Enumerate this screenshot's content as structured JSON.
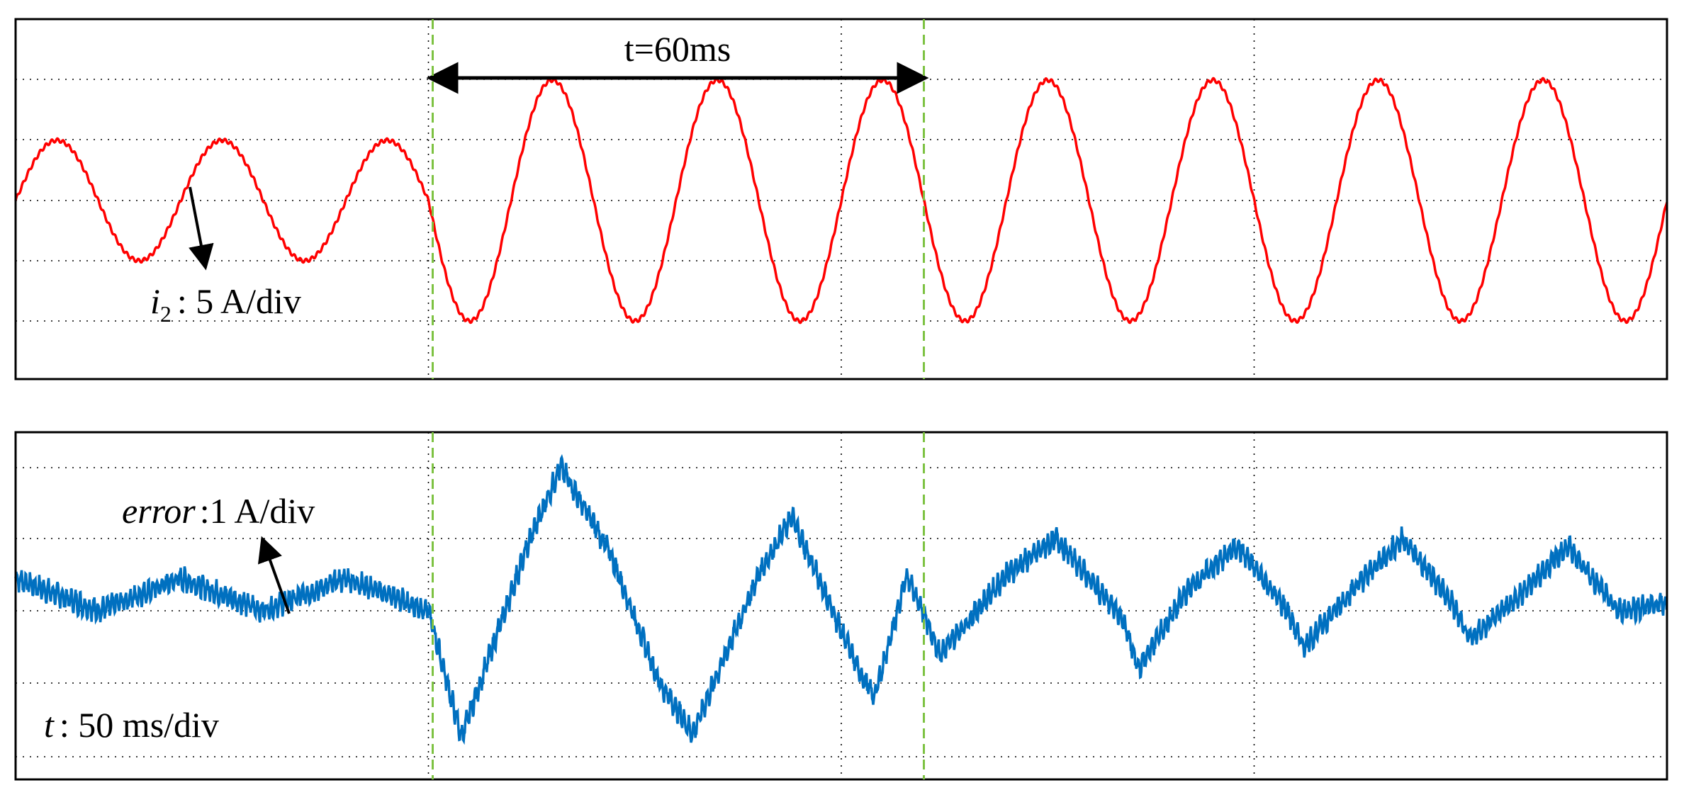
{
  "chart_data": [
    {
      "type": "line",
      "title": "",
      "xlabel": "",
      "ylabel": "",
      "grid": true,
      "x_divisions": 4,
      "y_divisions": 6,
      "color": "#ff0000",
      "annotations": {
        "scale": "i2 : 5 A/div",
        "scale_symbol": "i",
        "scale_subscript": "2",
        "scale_text": ": 5 A/div",
        "interval_text": "t=60ms"
      },
      "series": [
        {
          "description_free": true,
          "amplitude_divisions_before": 1,
          "amplitude_divisions_after": 2,
          "period_ms": 20,
          "step_time_ms": 50,
          "marker_times_ms": [
            50,
            110
          ],
          "sampled_peaks_div": [
            1,
            -1,
            1,
            -1,
            1,
            -1,
            2,
            -2,
            2,
            -2,
            2,
            -2,
            2,
            -2,
            2,
            -2,
            2,
            -2,
            2,
            -2
          ]
        }
      ]
    },
    {
      "type": "line",
      "title": "",
      "xlabel": "",
      "ylabel": "",
      "grid": true,
      "x_divisions": 4,
      "y_divisions": 4,
      "color": "#0070c0",
      "annotations": {
        "scale_symbol": "error",
        "scale_text": ":1 A/div",
        "time_symbol": "t",
        "time_text": ": 50 ms/div"
      },
      "series": [
        {
          "step_time_ms": 50,
          "marker_times_ms": [
            50,
            110
          ],
          "key_points_ms_div": [
            [
              0,
              0.45
            ],
            [
              10,
              0.0
            ],
            [
              20,
              0.45
            ],
            [
              30,
              0.0
            ],
            [
              40,
              0.45
            ],
            [
              50,
              0.0
            ],
            [
              54,
              -1.75
            ],
            [
              62,
              0.9
            ],
            [
              66,
              2.0
            ],
            [
              72,
              0.8
            ],
            [
              78,
              -1.0
            ],
            [
              82,
              -1.7
            ],
            [
              90,
              0.5
            ],
            [
              94,
              1.3
            ],
            [
              102,
              -0.8
            ],
            [
              104,
              -1.2
            ],
            [
              108,
              0.5
            ],
            [
              112,
              -0.6
            ],
            [
              120,
              0.5
            ],
            [
              126,
              1.0
            ],
            [
              134,
              -0.1
            ],
            [
              136,
              -0.8
            ],
            [
              142,
              0.3
            ],
            [
              148,
              0.9
            ],
            [
              154,
              0.0
            ],
            [
              156,
              -0.5
            ],
            [
              162,
              0.3
            ],
            [
              168,
              1.0
            ],
            [
              174,
              0.1
            ],
            [
              176,
              -0.4
            ],
            [
              182,
              0.2
            ],
            [
              188,
              0.9
            ],
            [
              194,
              0.0
            ],
            [
              200,
              0.1
            ]
          ]
        }
      ]
    }
  ]
}
